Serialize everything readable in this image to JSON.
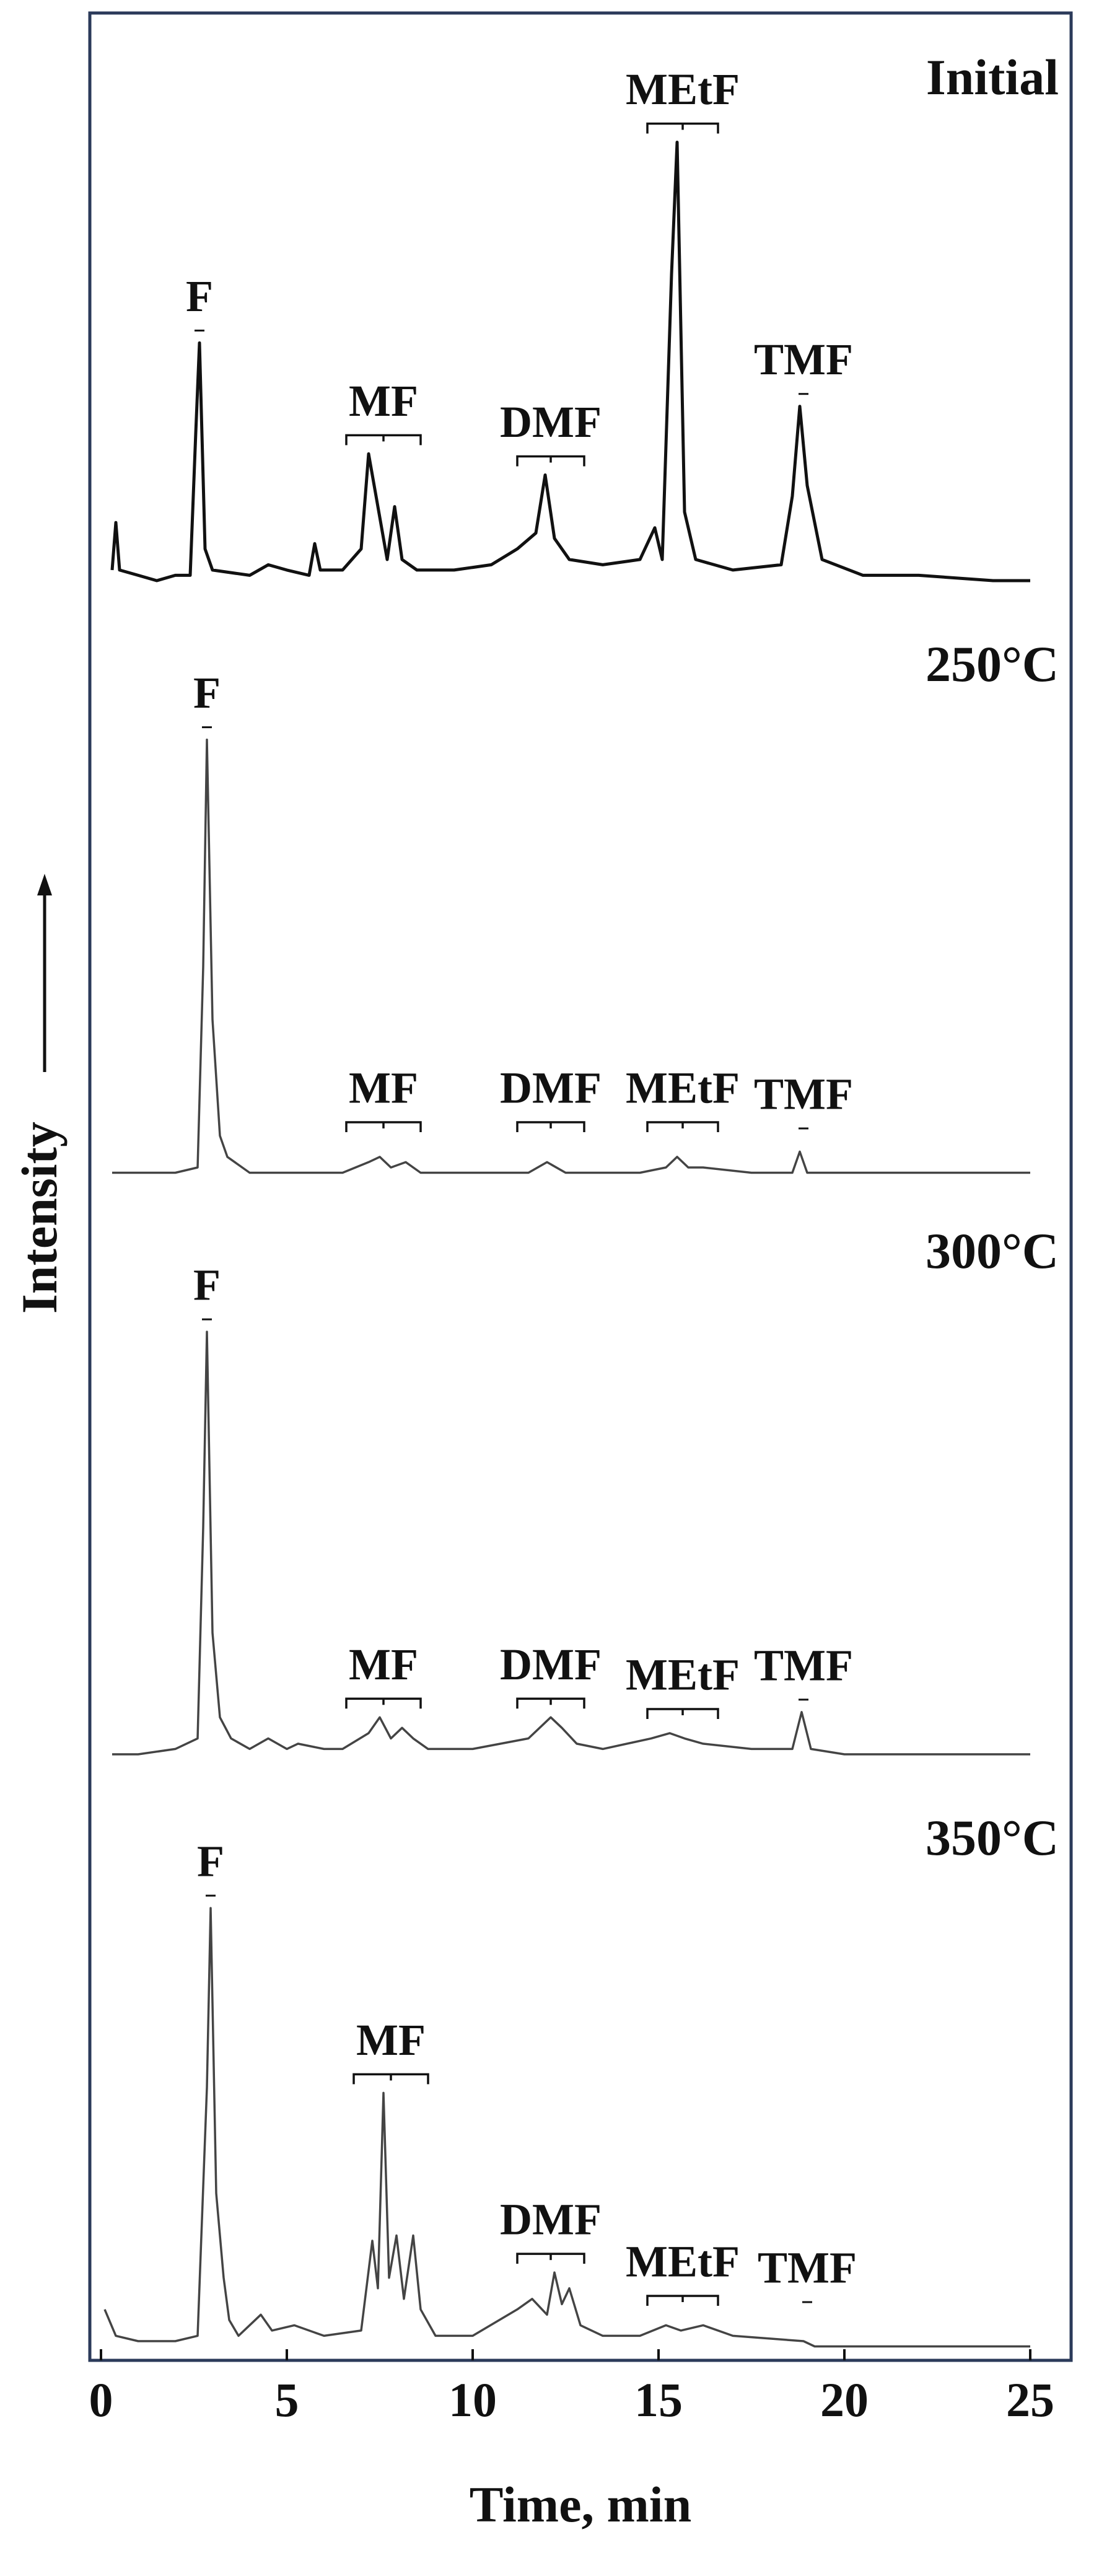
{
  "chart_data": {
    "type": "line",
    "xlabel": "Time, min",
    "ylabel": "Intensity",
    "xlim": [
      -0.3,
      26.1
    ],
    "xticks": [
      0,
      5,
      10,
      15,
      20,
      25
    ],
    "ylim": [
      0,
      100
    ],
    "grid": false,
    "series": [
      {
        "name": "Initial",
        "color": "#111111",
        "x": [
          0.3,
          0.4,
          0.5,
          1,
          1.5,
          2,
          2.4,
          2.55,
          2.65,
          2.8,
          3,
          4,
          4.5,
          5,
          5.6,
          5.75,
          5.9,
          6.5,
          7,
          7.2,
          7.35,
          7.5,
          7.7,
          7.9,
          8.1,
          8.5,
          9.5,
          10.5,
          11.2,
          11.7,
          11.95,
          12.2,
          12.6,
          13.5,
          14.5,
          14.9,
          15.1,
          15.35,
          15.5,
          15.7,
          16,
          17,
          18.3,
          18.6,
          18.8,
          19.0,
          19.4,
          20.5,
          22,
          24,
          25
        ],
        "values": [
          4,
          13,
          4,
          3,
          2,
          3,
          3,
          30,
          47,
          8,
          4,
          3,
          5,
          4,
          3,
          9,
          4,
          4,
          8,
          26,
          20,
          14,
          6,
          16,
          6,
          4,
          4,
          5,
          8,
          11,
          22,
          10,
          6,
          5,
          6,
          12,
          6,
          60,
          85,
          15,
          6,
          4,
          5,
          18,
          35,
          20,
          6,
          3,
          3,
          2,
          2
        ],
        "peaks": [
          {
            "label": "F",
            "x": 2.65
          },
          {
            "label": "MF",
            "span": [
              6.6,
              8.6
            ]
          },
          {
            "label": "DMF",
            "span": [
              11.2,
              13.0
            ]
          },
          {
            "label": "MEtF",
            "span": [
              14.7,
              16.6
            ]
          },
          {
            "label": "TMF",
            "x": 18.9
          }
        ]
      },
      {
        "name": "250°C",
        "color": "#444444",
        "x": [
          0.3,
          2,
          2.6,
          2.75,
          2.85,
          3.0,
          3.2,
          3.4,
          4,
          6.5,
          7.2,
          7.5,
          7.8,
          8.2,
          8.6,
          10,
          11.5,
          12.0,
          12.5,
          14.5,
          15.2,
          15.5,
          15.8,
          16.2,
          17.5,
          18.6,
          18.8,
          19.0,
          20,
          25
        ],
        "values": [
          1,
          1,
          2,
          40,
          83,
          30,
          8,
          4,
          1,
          1,
          3,
          4,
          2,
          3,
          1,
          1,
          1,
          3,
          1,
          1,
          2,
          4,
          2,
          2,
          1,
          1,
          5,
          1,
          1,
          1
        ],
        "peaks": [
          {
            "label": "F",
            "x": 2.85
          },
          {
            "label": "MF",
            "span": [
              6.6,
              8.6
            ]
          },
          {
            "label": "DMF",
            "span": [
              11.2,
              13.0
            ]
          },
          {
            "label": "MEtF",
            "span": [
              14.7,
              16.6
            ]
          },
          {
            "label": "TMF",
            "x": 18.9
          }
        ]
      },
      {
        "name": "300°C",
        "color": "#444444",
        "x": [
          0.3,
          1,
          2,
          2.6,
          2.75,
          2.85,
          3.0,
          3.2,
          3.5,
          4,
          4.5,
          5,
          5.3,
          6,
          6.5,
          7.2,
          7.5,
          7.8,
          8.1,
          8.4,
          8.8,
          10,
          11.5,
          12.1,
          12.4,
          12.8,
          13.5,
          14.8,
          15.3,
          15.7,
          16.2,
          17.5,
          18.6,
          18.85,
          19.1,
          20,
          25
        ],
        "values": [
          2,
          2,
          3,
          5,
          45,
          82,
          25,
          9,
          5,
          3,
          5,
          3,
          4,
          3,
          3,
          6,
          9,
          5,
          7,
          5,
          3,
          3,
          5,
          9,
          7,
          4,
          3,
          5,
          6,
          5,
          4,
          3,
          3,
          10,
          3,
          2,
          2
        ],
        "peaks": [
          {
            "label": "F",
            "x": 2.85
          },
          {
            "label": "MF",
            "span": [
              6.6,
              8.6
            ]
          },
          {
            "label": "DMF",
            "span": [
              11.2,
              13.0
            ]
          },
          {
            "label": "MEtF",
            "span": [
              14.7,
              16.6
            ]
          },
          {
            "label": "TMF",
            "x": 18.9
          }
        ]
      },
      {
        "name": "350°C",
        "color": "#444444",
        "x": [
          0.1,
          0.4,
          1,
          2,
          2.6,
          2.85,
          2.95,
          3.1,
          3.3,
          3.45,
          3.7,
          4.3,
          4.6,
          5.2,
          6,
          7,
          7.3,
          7.45,
          7.6,
          7.75,
          7.95,
          8.15,
          8.4,
          8.6,
          9,
          10,
          11.2,
          11.6,
          12.0,
          12.2,
          12.4,
          12.6,
          12.9,
          13.5,
          14.5,
          15.2,
          15.6,
          16.2,
          17,
          18.9,
          19.2,
          20,
          25
        ],
        "values": [
          8,
          3,
          2,
          2,
          3,
          50,
          84,
          30,
          14,
          6,
          3,
          7,
          4,
          5,
          3,
          4,
          21,
          12,
          49,
          14,
          22,
          10,
          22,
          8,
          3,
          3,
          8,
          10,
          7,
          15,
          9,
          12,
          5,
          3,
          3,
          5,
          4,
          5,
          3,
          2,
          1,
          1,
          1
        ],
        "peaks": [
          {
            "label": "F",
            "x": 2.95
          },
          {
            "label": "MF",
            "span": [
              6.8,
              8.8
            ]
          },
          {
            "label": "DMF",
            "span": [
              11.2,
              13.0
            ]
          },
          {
            "label": "MEtF",
            "span": [
              14.7,
              16.6
            ]
          },
          {
            "label": "TMF",
            "x": 19.0
          }
        ]
      }
    ]
  }
}
